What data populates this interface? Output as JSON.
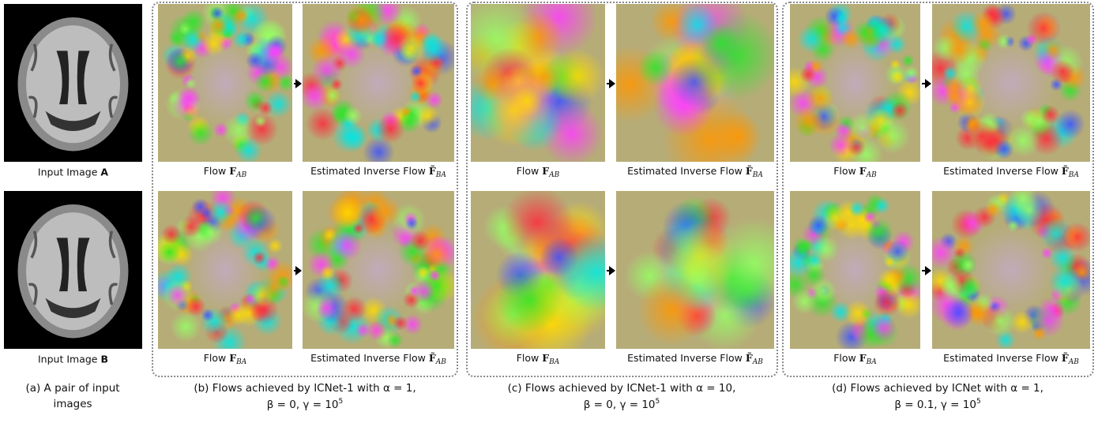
{
  "panels": [
    {
      "rows": [
        [
          {
            "text": "Input Image",
            "bold": "A"
          }
        ],
        [
          {
            "text": "Input Image",
            "bold": "B"
          }
        ]
      ],
      "caption": {
        "line1": "(a) A pair of input",
        "line2": "images"
      }
    },
    {
      "rows": [
        [
          {
            "text": "Flow",
            "symbol": "F",
            "sub": "AB"
          },
          {
            "text": "Estimated Inverse Flow",
            "symbol": "F̃",
            "sub": "BA"
          }
        ],
        [
          {
            "text": "Flow",
            "symbol": "F",
            "sub": "BA"
          },
          {
            "text": "Estimated Inverse Flow",
            "symbol": "F̃",
            "sub": "AB"
          }
        ]
      ],
      "caption": {
        "line1": "(b) Flows achieved by ICNet-1 with α = 1,",
        "line2": "β = 0, γ = 10",
        "line2_sup": "5"
      }
    },
    {
      "rows": [
        [
          {
            "text": "Flow",
            "symbol": "F",
            "sub": "AB"
          },
          {
            "text": "Estimated Inverse Flow",
            "symbol": "F̃",
            "sub": "BA"
          }
        ],
        [
          {
            "text": "Flow",
            "symbol": "F",
            "sub": "BA"
          },
          {
            "text": "Estimated Inverse Flow",
            "symbol": "F̃",
            "sub": "AB"
          }
        ]
      ],
      "caption": {
        "line1": "(c) Flows achieved by ICNet-1 with α = 10,",
        "line2": "β = 0, γ = 10",
        "line2_sup": "5"
      }
    },
    {
      "rows": [
        [
          {
            "text": "Flow",
            "symbol": "F",
            "sub": "AB"
          },
          {
            "text": "Estimated Inverse Flow",
            "symbol": "F̃",
            "sub": "BA"
          }
        ],
        [
          {
            "text": "Flow",
            "symbol": "F",
            "sub": "BA"
          },
          {
            "text": "Estimated Inverse Flow",
            "symbol": "F̃",
            "sub": "AB"
          }
        ]
      ],
      "caption": {
        "line1": "(d) Flows achieved by ICNet with α = 1,",
        "line2": "β = 0.1, γ = 10",
        "line2_sup": "5"
      }
    }
  ]
}
